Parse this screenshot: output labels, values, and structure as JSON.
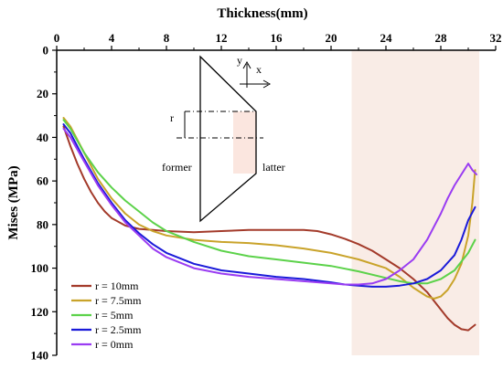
{
  "chart_data": {
    "type": "line",
    "xlabel": "Thickness(mm)",
    "ylabel": "Mises (MPa)",
    "x_axis_position": "top",
    "y_axis_inverted": true,
    "xlim": [
      0,
      32
    ],
    "ylim": [
      0,
      140
    ],
    "xticks": [
      0,
      4,
      8,
      12,
      16,
      20,
      24,
      28,
      32
    ],
    "yticks": [
      0,
      20,
      40,
      60,
      80,
      100,
      120,
      140
    ],
    "grid": false,
    "legend_position": "bottom-left",
    "highlight_region": {
      "x": [
        21.5,
        30.8
      ],
      "color": "#f9ece6"
    },
    "series": [
      {
        "name": "r = 10mm",
        "color": "#a33a2a",
        "x": [
          0.5,
          1,
          1.5,
          2,
          2.5,
          3,
          3.5,
          4,
          5,
          6,
          7,
          8,
          10,
          12,
          14,
          16,
          18,
          19,
          20,
          21,
          22,
          23,
          24,
          25,
          26,
          27,
          27.5,
          28,
          28.5,
          29,
          29.5,
          30,
          30.5
        ],
        "values": [
          35,
          44,
          52,
          59,
          65,
          70,
          74,
          77,
          80.5,
          82,
          82.5,
          83,
          83.5,
          83,
          82.5,
          82.5,
          82.5,
          83,
          84.5,
          86.5,
          89,
          92,
          96,
          100,
          105,
          111,
          115,
          119,
          123,
          126,
          128,
          128.5,
          126
        ]
      },
      {
        "name": "r = 7.5mm",
        "color": "#c9a32a",
        "x": [
          0.5,
          1,
          2,
          3,
          4,
          5,
          6,
          7,
          8,
          10,
          12,
          14,
          16,
          18,
          20,
          22,
          24,
          25,
          26,
          27,
          27.5,
          28,
          28.5,
          29,
          29.5,
          30,
          30.3,
          30.5
        ],
        "values": [
          31,
          35,
          47,
          59,
          68,
          75,
          80,
          83,
          85,
          87,
          88,
          88.5,
          89.5,
          91,
          93,
          96,
          100,
          104,
          109,
          113,
          114,
          113,
          110,
          105,
          98,
          85,
          70,
          55
        ]
      },
      {
        "name": "r = 5mm",
        "color": "#5cd24a",
        "x": [
          0.5,
          1,
          2,
          3,
          4,
          5,
          6,
          7,
          8,
          10,
          12,
          14,
          16,
          18,
          20,
          22,
          24,
          25,
          26,
          27,
          28,
          29,
          29.5,
          30,
          30.5
        ],
        "values": [
          32,
          36,
          47,
          56,
          63,
          69,
          74,
          79,
          83,
          88,
          92,
          94.5,
          96,
          97.5,
          99,
          101.5,
          104.5,
          106,
          107,
          107,
          105,
          101,
          97,
          93,
          87
        ]
      },
      {
        "name": "r = 2.5mm",
        "color": "#1a1ad9",
        "x": [
          0.5,
          1,
          2,
          3,
          4,
          5,
          6,
          7,
          8,
          10,
          12,
          14,
          16,
          18,
          20,
          21,
          22,
          23,
          24,
          25,
          26,
          27,
          28,
          29,
          29.5,
          30,
          30.5
        ],
        "values": [
          34,
          38,
          50,
          61,
          70,
          78,
          84,
          89,
          93,
          98,
          101,
          102.5,
          104,
          105,
          106.5,
          107.5,
          108,
          108.5,
          108.5,
          108,
          107,
          105,
          101,
          94,
          87,
          78,
          72
        ]
      },
      {
        "name": "r = 0mm",
        "color": "#9a3cf2",
        "x": [
          0.5,
          1,
          2,
          3,
          4,
          5,
          6,
          7,
          8,
          10,
          12,
          14,
          16,
          18,
          20,
          21,
          22,
          23,
          24,
          25,
          26,
          27,
          28,
          28.5,
          29,
          29.5,
          30,
          30.3,
          30.6
        ],
        "values": [
          36,
          40,
          51,
          62,
          71,
          79,
          85,
          91,
          95,
          100,
          102.5,
          104,
          105,
          106,
          107,
          107.5,
          107.5,
          107,
          105,
          101,
          96,
          87,
          75,
          68,
          62,
          57,
          52,
          55,
          57
        ]
      }
    ],
    "inset": {
      "labels": {
        "r": "r",
        "former": "former",
        "latter": "latter",
        "y": "y",
        "x": "x"
      }
    }
  }
}
